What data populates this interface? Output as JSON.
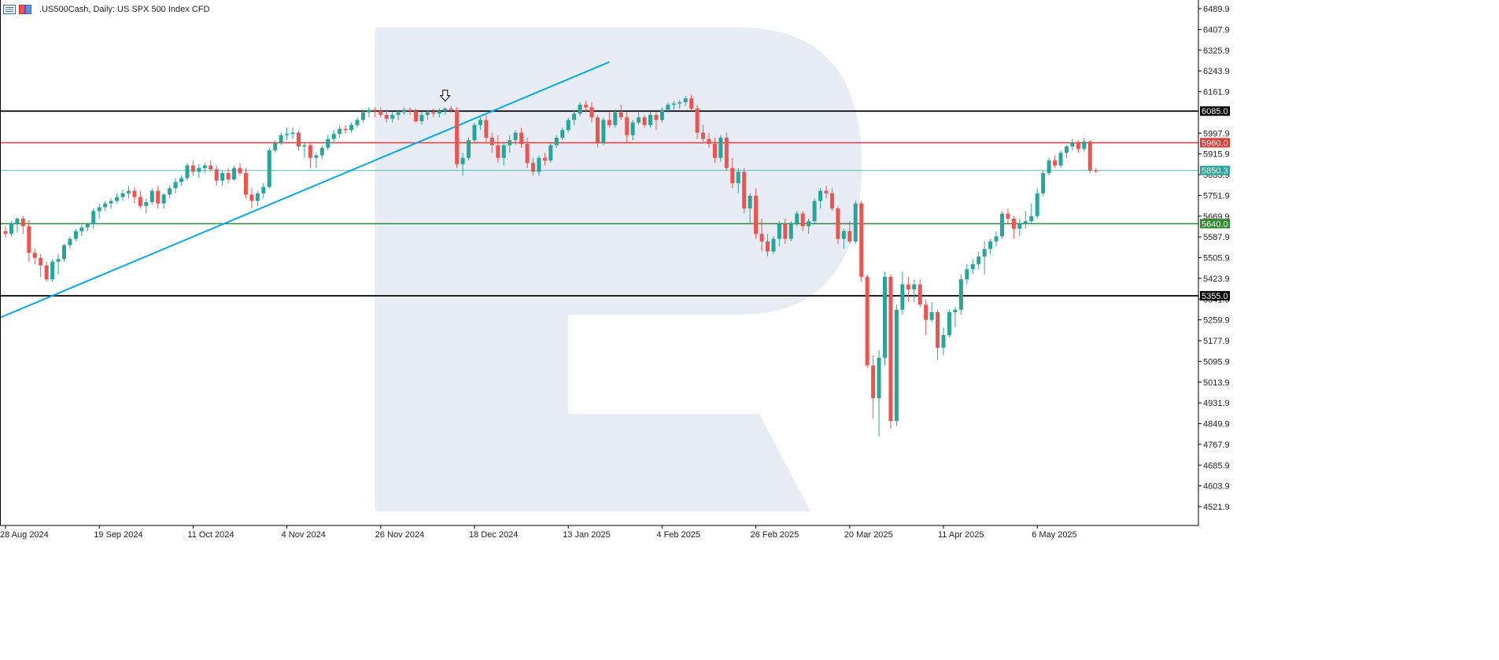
{
  "header": {
    "title": ".US500Cash, Daily:  US SPX 500 Index CFD",
    "icons": [
      "menu-icon",
      "one-click-trading-icon"
    ]
  },
  "colors": {
    "bull": "#26a69a",
    "bear": "#ef5350",
    "trendline": "#00aaee",
    "resistance_red": "#e53935",
    "support_green": "#2e8b2e",
    "level_black": "#000000",
    "current_price": "#26a69a",
    "watermark": "#e8edf5"
  },
  "chart_data": {
    "type": "candlestick",
    "instrument": ".US500Cash",
    "timeframe": "Daily",
    "y_ticks": [
      "6489.9",
      "6407.9",
      "6325.9",
      "6243.9",
      "6161.9",
      "5997.9",
      "5915.9",
      "5833.9",
      "5751.9",
      "5669.9",
      "5587.9",
      "5505.9",
      "5423.9",
      "5341.9",
      "5259.9",
      "5177.9",
      "5095.9",
      "5013.9",
      "4931.9",
      "4849.9",
      "4767.9",
      "4685.9",
      "4603.9",
      "4521.9"
    ],
    "ylim": [
      4480,
      6530
    ],
    "x_ticks": [
      "28 Aug 2024",
      "19 Sep 2024",
      "11 Oct 2024",
      "4 Nov 2024",
      "26 Nov 2024",
      "18 Dec 2024",
      "13 Jan 2025",
      "4 Feb 2025",
      "26 Feb 2025",
      "20 Mar 2025",
      "11 Apr 2025",
      "6 May 2025"
    ],
    "x_tick_bars": [
      0,
      16,
      32,
      48,
      64,
      80,
      96,
      112,
      128,
      144,
      160,
      176
    ],
    "levels": [
      {
        "price": 6085.0,
        "label": "6085.0",
        "kind": "black"
      },
      {
        "price": 5960.0,
        "label": "5960.0",
        "kind": "red"
      },
      {
        "price": 5850.3,
        "label": "5850.3",
        "kind": "current"
      },
      {
        "price": 5640.0,
        "label": "5640.0",
        "kind": "green"
      },
      {
        "price": 5355.0,
        "label": "5355.0",
        "kind": "black"
      }
    ],
    "trendline": {
      "start": {
        "bar": -1,
        "price": 5268
      },
      "end": {
        "bar": 103,
        "price": 6279
      }
    },
    "arrow_marker": {
      "bar": 75,
      "price": 6118
    },
    "ohlc": [
      [
        5610,
        5630,
        5585,
        5600
      ],
      [
        5600,
        5650,
        5590,
        5640
      ],
      [
        5640,
        5665,
        5605,
        5660
      ],
      [
        5660,
        5670,
        5600,
        5630
      ],
      [
        5630,
        5655,
        5490,
        5525
      ],
      [
        5525,
        5540,
        5480,
        5505
      ],
      [
        5505,
        5520,
        5430,
        5475
      ],
      [
        5475,
        5490,
        5410,
        5420
      ],
      [
        5420,
        5500,
        5410,
        5490
      ],
      [
        5490,
        5520,
        5440,
        5500
      ],
      [
        5500,
        5560,
        5490,
        5555
      ],
      [
        5555,
        5590,
        5540,
        5580
      ],
      [
        5580,
        5620,
        5570,
        5610
      ],
      [
        5610,
        5635,
        5590,
        5625
      ],
      [
        5625,
        5645,
        5610,
        5640
      ],
      [
        5640,
        5700,
        5620,
        5690
      ],
      [
        5690,
        5720,
        5660,
        5705
      ],
      [
        5705,
        5730,
        5690,
        5720
      ],
      [
        5720,
        5740,
        5700,
        5730
      ],
      [
        5730,
        5760,
        5720,
        5745
      ],
      [
        5745,
        5775,
        5730,
        5760
      ],
      [
        5760,
        5790,
        5740,
        5770
      ],
      [
        5770,
        5785,
        5720,
        5745
      ],
      [
        5745,
        5770,
        5700,
        5710
      ],
      [
        5710,
        5740,
        5680,
        5725
      ],
      [
        5725,
        5780,
        5715,
        5770
      ],
      [
        5770,
        5790,
        5700,
        5720
      ],
      [
        5720,
        5760,
        5700,
        5755
      ],
      [
        5755,
        5790,
        5740,
        5780
      ],
      [
        5780,
        5820,
        5760,
        5805
      ],
      [
        5805,
        5830,
        5790,
        5820
      ],
      [
        5820,
        5880,
        5810,
        5870
      ],
      [
        5870,
        5890,
        5830,
        5845
      ],
      [
        5845,
        5875,
        5820,
        5860
      ],
      [
        5860,
        5880,
        5840,
        5870
      ],
      [
        5870,
        5890,
        5845,
        5855
      ],
      [
        5855,
        5870,
        5790,
        5810
      ],
      [
        5810,
        5850,
        5790,
        5840
      ],
      [
        5840,
        5860,
        5800,
        5815
      ],
      [
        5815,
        5870,
        5810,
        5860
      ],
      [
        5860,
        5880,
        5830,
        5840
      ],
      [
        5840,
        5860,
        5740,
        5755
      ],
      [
        5755,
        5780,
        5700,
        5730
      ],
      [
        5730,
        5770,
        5710,
        5760
      ],
      [
        5760,
        5800,
        5740,
        5785
      ],
      [
        5785,
        5940,
        5780,
        5930
      ],
      [
        5930,
        5970,
        5920,
        5960
      ],
      [
        5960,
        6000,
        5950,
        5990
      ],
      [
        5990,
        6020,
        5970,
        5995
      ],
      [
        5995,
        6020,
        5975,
        6000
      ],
      [
        6000,
        6010,
        5930,
        5945
      ],
      [
        5945,
        5960,
        5900,
        5950
      ],
      [
        5950,
        5960,
        5860,
        5900
      ],
      [
        5900,
        5920,
        5860,
        5910
      ],
      [
        5910,
        5950,
        5895,
        5940
      ],
      [
        5940,
        5990,
        5930,
        5975
      ],
      [
        5975,
        6010,
        5960,
        5995
      ],
      [
        5995,
        6030,
        5980,
        6015
      ],
      [
        6015,
        6030,
        5995,
        6010
      ],
      [
        6010,
        6040,
        6000,
        6030
      ],
      [
        6030,
        6060,
        6020,
        6050
      ],
      [
        6050,
        6090,
        6040,
        6080
      ],
      [
        6080,
        6100,
        6060,
        6090
      ],
      [
        6090,
        6100,
        6060,
        6085
      ],
      [
        6085,
        6100,
        6060,
        6070
      ],
      [
        6070,
        6090,
        6040,
        6055
      ],
      [
        6055,
        6080,
        6040,
        6070
      ],
      [
        6070,
        6090,
        6050,
        6080
      ],
      [
        6080,
        6100,
        6070,
        6090
      ],
      [
        6090,
        6100,
        6070,
        6085
      ],
      [
        6085,
        6095,
        6040,
        6045
      ],
      [
        6045,
        6080,
        6030,
        6070
      ],
      [
        6070,
        6090,
        6050,
        6080
      ],
      [
        6080,
        6095,
        6060,
        6075
      ],
      [
        6075,
        6095,
        6060,
        6085
      ],
      [
        6085,
        6100,
        6070,
        6095
      ],
      [
        6095,
        6105,
        6080,
        6090
      ],
      [
        6090,
        6100,
        5860,
        5875
      ],
      [
        5875,
        5920,
        5830,
        5900
      ],
      [
        5900,
        5980,
        5890,
        5970
      ],
      [
        5970,
        6040,
        5960,
        6030
      ],
      [
        6030,
        6060,
        6010,
        6050
      ],
      [
        6050,
        6070,
        5960,
        5980
      ],
      [
        5980,
        6000,
        5920,
        5950
      ],
      [
        5950,
        5990,
        5880,
        5900
      ],
      [
        5900,
        5960,
        5870,
        5950
      ],
      [
        5950,
        5990,
        5920,
        5970
      ],
      [
        5970,
        6010,
        5950,
        6000
      ],
      [
        6000,
        6020,
        5940,
        5955
      ],
      [
        5955,
        5980,
        5860,
        5880
      ],
      [
        5880,
        5900,
        5830,
        5845
      ],
      [
        5845,
        5910,
        5830,
        5900
      ],
      [
        5900,
        5920,
        5870,
        5890
      ],
      [
        5890,
        5960,
        5880,
        5950
      ],
      [
        5950,
        5990,
        5940,
        5980
      ],
      [
        5980,
        6020,
        5970,
        6010
      ],
      [
        6010,
        6060,
        6000,
        6050
      ],
      [
        6050,
        6090,
        6030,
        6075
      ],
      [
        6075,
        6120,
        6065,
        6110
      ],
      [
        6110,
        6125,
        6080,
        6100
      ],
      [
        6100,
        6120,
        6040,
        6060
      ],
      [
        6060,
        6070,
        5940,
        5960
      ],
      [
        5960,
        6060,
        5950,
        6050
      ],
      [
        6050,
        6080,
        6020,
        6030
      ],
      [
        6030,
        6090,
        6020,
        6080
      ],
      [
        6080,
        6110,
        6050,
        6060
      ],
      [
        6060,
        6080,
        5960,
        5990
      ],
      [
        5990,
        6050,
        5970,
        6040
      ],
      [
        6040,
        6080,
        6030,
        6060
      ],
      [
        6060,
        6070,
        6020,
        6030
      ],
      [
        6030,
        6080,
        6020,
        6070
      ],
      [
        6070,
        6080,
        6010,
        6050
      ],
      [
        6050,
        6100,
        6040,
        6090
      ],
      [
        6090,
        6120,
        6080,
        6110
      ],
      [
        6110,
        6125,
        6090,
        6115
      ],
      [
        6115,
        6130,
        6095,
        6120
      ],
      [
        6120,
        6145,
        6105,
        6135
      ],
      [
        6135,
        6150,
        6085,
        6095
      ],
      [
        6095,
        6110,
        5975,
        6000
      ],
      [
        6000,
        6030,
        5965,
        5975
      ],
      [
        5975,
        6000,
        5940,
        5955
      ],
      [
        5955,
        5980,
        5880,
        5900
      ],
      [
        5900,
        5990,
        5885,
        5980
      ],
      [
        5980,
        6000,
        5850,
        5860
      ],
      [
        5860,
        5900,
        5780,
        5800
      ],
      [
        5800,
        5860,
        5760,
        5845
      ],
      [
        5845,
        5860,
        5680,
        5700
      ],
      [
        5700,
        5760,
        5640,
        5750
      ],
      [
        5750,
        5780,
        5580,
        5600
      ],
      [
        5600,
        5660,
        5530,
        5570
      ],
      [
        5570,
        5600,
        5510,
        5530
      ],
      [
        5530,
        5590,
        5520,
        5580
      ],
      [
        5580,
        5650,
        5550,
        5640
      ],
      [
        5640,
        5660,
        5560,
        5580
      ],
      [
        5580,
        5650,
        5570,
        5640
      ],
      [
        5640,
        5690,
        5630,
        5680
      ],
      [
        5680,
        5690,
        5610,
        5630
      ],
      [
        5630,
        5660,
        5600,
        5650
      ],
      [
        5650,
        5740,
        5640,
        5730
      ],
      [
        5730,
        5780,
        5700,
        5770
      ],
      [
        5770,
        5790,
        5740,
        5760
      ],
      [
        5760,
        5780,
        5690,
        5700
      ],
      [
        5700,
        5710,
        5560,
        5580
      ],
      [
        5580,
        5620,
        5540,
        5610
      ],
      [
        5610,
        5650,
        5560,
        5570
      ],
      [
        5570,
        5730,
        5560,
        5720
      ],
      [
        5720,
        5730,
        5410,
        5430
      ],
      [
        5430,
        5440,
        5070,
        5080
      ],
      [
        5080,
        5120,
        4870,
        4950
      ],
      [
        4950,
        5140,
        4800,
        5110
      ],
      [
        5110,
        5450,
        5080,
        5430
      ],
      [
        5430,
        5440,
        4830,
        4860
      ],
      [
        4860,
        5320,
        4840,
        5300
      ],
      [
        5300,
        5450,
        5280,
        5400
      ],
      [
        5400,
        5430,
        5330,
        5380
      ],
      [
        5380,
        5420,
        5330,
        5400
      ],
      [
        5400,
        5420,
        5310,
        5320
      ],
      [
        5320,
        5340,
        5200,
        5260
      ],
      [
        5260,
        5330,
        5250,
        5290
      ],
      [
        5290,
        5300,
        5100,
        5150
      ],
      [
        5150,
        5230,
        5120,
        5200
      ],
      [
        5200,
        5300,
        5190,
        5290
      ],
      [
        5290,
        5310,
        5230,
        5300
      ],
      [
        5300,
        5440,
        5280,
        5420
      ],
      [
        5420,
        5480,
        5400,
        5460
      ],
      [
        5460,
        5500,
        5440,
        5480
      ],
      [
        5480,
        5530,
        5460,
        5510
      ],
      [
        5510,
        5570,
        5440,
        5540
      ],
      [
        5540,
        5580,
        5520,
        5570
      ],
      [
        5570,
        5610,
        5550,
        5590
      ],
      [
        5590,
        5690,
        5580,
        5680
      ],
      [
        5680,
        5700,
        5640,
        5660
      ],
      [
        5660,
        5670,
        5580,
        5620
      ],
      [
        5620,
        5660,
        5590,
        5640
      ],
      [
        5640,
        5690,
        5620,
        5650
      ],
      [
        5650,
        5720,
        5640,
        5670
      ],
      [
        5670,
        5780,
        5660,
        5760
      ],
      [
        5760,
        5850,
        5750,
        5840
      ],
      [
        5840,
        5900,
        5830,
        5890
      ],
      [
        5890,
        5910,
        5860,
        5870
      ],
      [
        5870,
        5930,
        5860,
        5920
      ],
      [
        5920,
        5950,
        5900,
        5945
      ],
      [
        5945,
        5975,
        5930,
        5960
      ],
      [
        5960,
        5970,
        5920,
        5935
      ],
      [
        5935,
        5980,
        5925,
        5965
      ],
      [
        5965,
        5970,
        5840,
        5850
      ],
      [
        5850,
        5860,
        5840,
        5848
      ]
    ]
  }
}
